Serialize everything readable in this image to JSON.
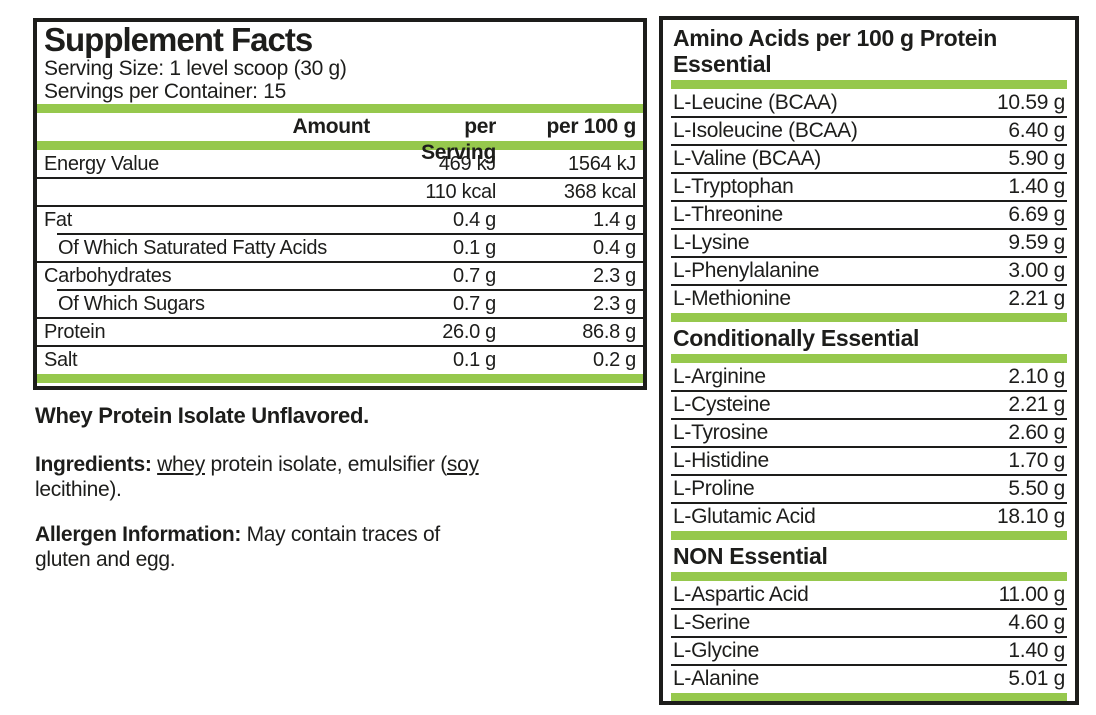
{
  "colors": {
    "accent_green": "#96c84d",
    "ink": "#1d1d1b"
  },
  "supplement_facts": {
    "title": "Supplement Facts",
    "serving_size": "Serving Size: 1 level scoop (30 g)",
    "servings_per_container": "Servings per Container: 15",
    "header": {
      "amount": "Amount",
      "per_serving": "per Serving",
      "per_100g": "per 100 g"
    },
    "rows": [
      {
        "name": "Energy Value",
        "per_serving": "469 kJ",
        "per_100g": "1564 kJ",
        "indent": false
      },
      {
        "name": "",
        "per_serving": "110 kcal",
        "per_100g": "368 kcal",
        "indent": false
      },
      {
        "name": "Fat",
        "per_serving": "0.4 g",
        "per_100g": "1.4 g",
        "indent": false
      },
      {
        "name": "Of Which Saturated Fatty Acids",
        "per_serving": "0.1 g",
        "per_100g": "0.4 g",
        "indent": true
      },
      {
        "name": "Carbohydrates",
        "per_serving": "0.7 g",
        "per_100g": "2.3 g",
        "indent": false
      },
      {
        "name": "Of Which Sugars",
        "per_serving": "0.7 g",
        "per_100g": "2.3 g",
        "indent": true
      },
      {
        "name": "Protein",
        "per_serving": "26.0 g",
        "per_100g": "86.8 g",
        "indent": false
      },
      {
        "name": "Salt",
        "per_serving": "0.1 g",
        "per_100g": "0.2 g",
        "indent": false
      }
    ]
  },
  "notes": {
    "product_name": "Whey Protein Isolate Unflavored.",
    "ingredients": {
      "label": "Ingredients:",
      "seg1": " ",
      "whey": "whey",
      "seg2": " protein isolate, emulsifier (",
      "soy": "soy",
      "line2": "lecithine)."
    },
    "allergen": {
      "label": "Allergen Information:",
      "line1": " May contain traces of",
      "line2": "gluten and egg."
    }
  },
  "amino_acids": {
    "title": "Amino Acids per 100 g Protein",
    "sections": [
      {
        "heading": "Essential",
        "rows": [
          {
            "name": "L-Leucine (BCAA)",
            "value": "10.59 g"
          },
          {
            "name": "L-Isoleucine (BCAA)",
            "value": "6.40 g"
          },
          {
            "name": "L-Valine (BCAA)",
            "value": "5.90 g"
          },
          {
            "name": "L-Tryptophan",
            "value": "1.40 g"
          },
          {
            "name": "L-Threonine",
            "value": "6.69 g"
          },
          {
            "name": "L-Lysine",
            "value": "9.59 g"
          },
          {
            "name": "L-Phenylalanine",
            "value": "3.00 g"
          },
          {
            "name": "L-Methionine",
            "value": "2.21 g"
          }
        ]
      },
      {
        "heading": "Conditionally Essential",
        "rows": [
          {
            "name": "L-Arginine",
            "value": "2.10 g"
          },
          {
            "name": "L-Cysteine",
            "value": "2.21 g"
          },
          {
            "name": "L-Tyrosine",
            "value": "2.60 g"
          },
          {
            "name": "L-Histidine",
            "value": "1.70 g"
          },
          {
            "name": "L-Proline",
            "value": "5.50 g"
          },
          {
            "name": "L-Glutamic Acid",
            "value": "18.10 g"
          }
        ]
      },
      {
        "heading": "NON Essential",
        "rows": [
          {
            "name": "L-Aspartic Acid",
            "value": "11.00 g"
          },
          {
            "name": "L-Serine",
            "value": "4.60 g"
          },
          {
            "name": "L-Glycine",
            "value": "1.40 g"
          },
          {
            "name": "L-Alanine",
            "value": "5.01 g"
          }
        ]
      }
    ]
  }
}
